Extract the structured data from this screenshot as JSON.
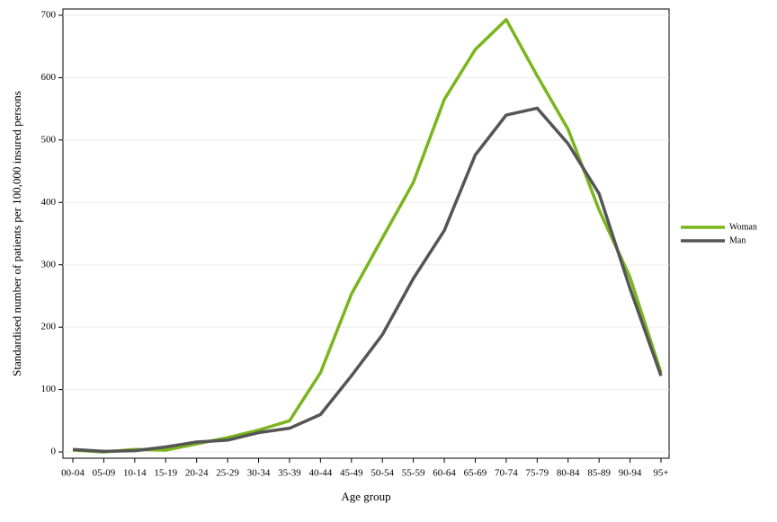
{
  "chart_data": {
    "type": "line",
    "x_label": "Age group",
    "y_label": "Standardised number of patients per 100,000 insured persons",
    "categories": [
      "00-04",
      "05-09",
      "10-14",
      "15-19",
      "20-24",
      "25-29",
      "30-34",
      "35-39",
      "40-44",
      "45-49",
      "50-54",
      "55-59",
      "60-64",
      "65-69",
      "70-74",
      "75-79",
      "80-84",
      "85-89",
      "90-94",
      "95+"
    ],
    "series": [
      {
        "name": "Woman",
        "color": "#7ab51d",
        "values": [
          3,
          0,
          4,
          3,
          13,
          23,
          35,
          50,
          127,
          253,
          343,
          432,
          565,
          645,
          693,
          603,
          517,
          388,
          280,
          127
        ]
      },
      {
        "name": "Man",
        "color": "#555555",
        "values": [
          4,
          1,
          2,
          8,
          16,
          19,
          31,
          38,
          60,
          122,
          188,
          278,
          355,
          476,
          540,
          551,
          494,
          414,
          262,
          122
        ]
      }
    ],
    "ylim": [
      -10,
      710
    ],
    "yticks": [
      0,
      100,
      200,
      300,
      400,
      500,
      600,
      700
    ],
    "grid": true,
    "legend": "right"
  }
}
